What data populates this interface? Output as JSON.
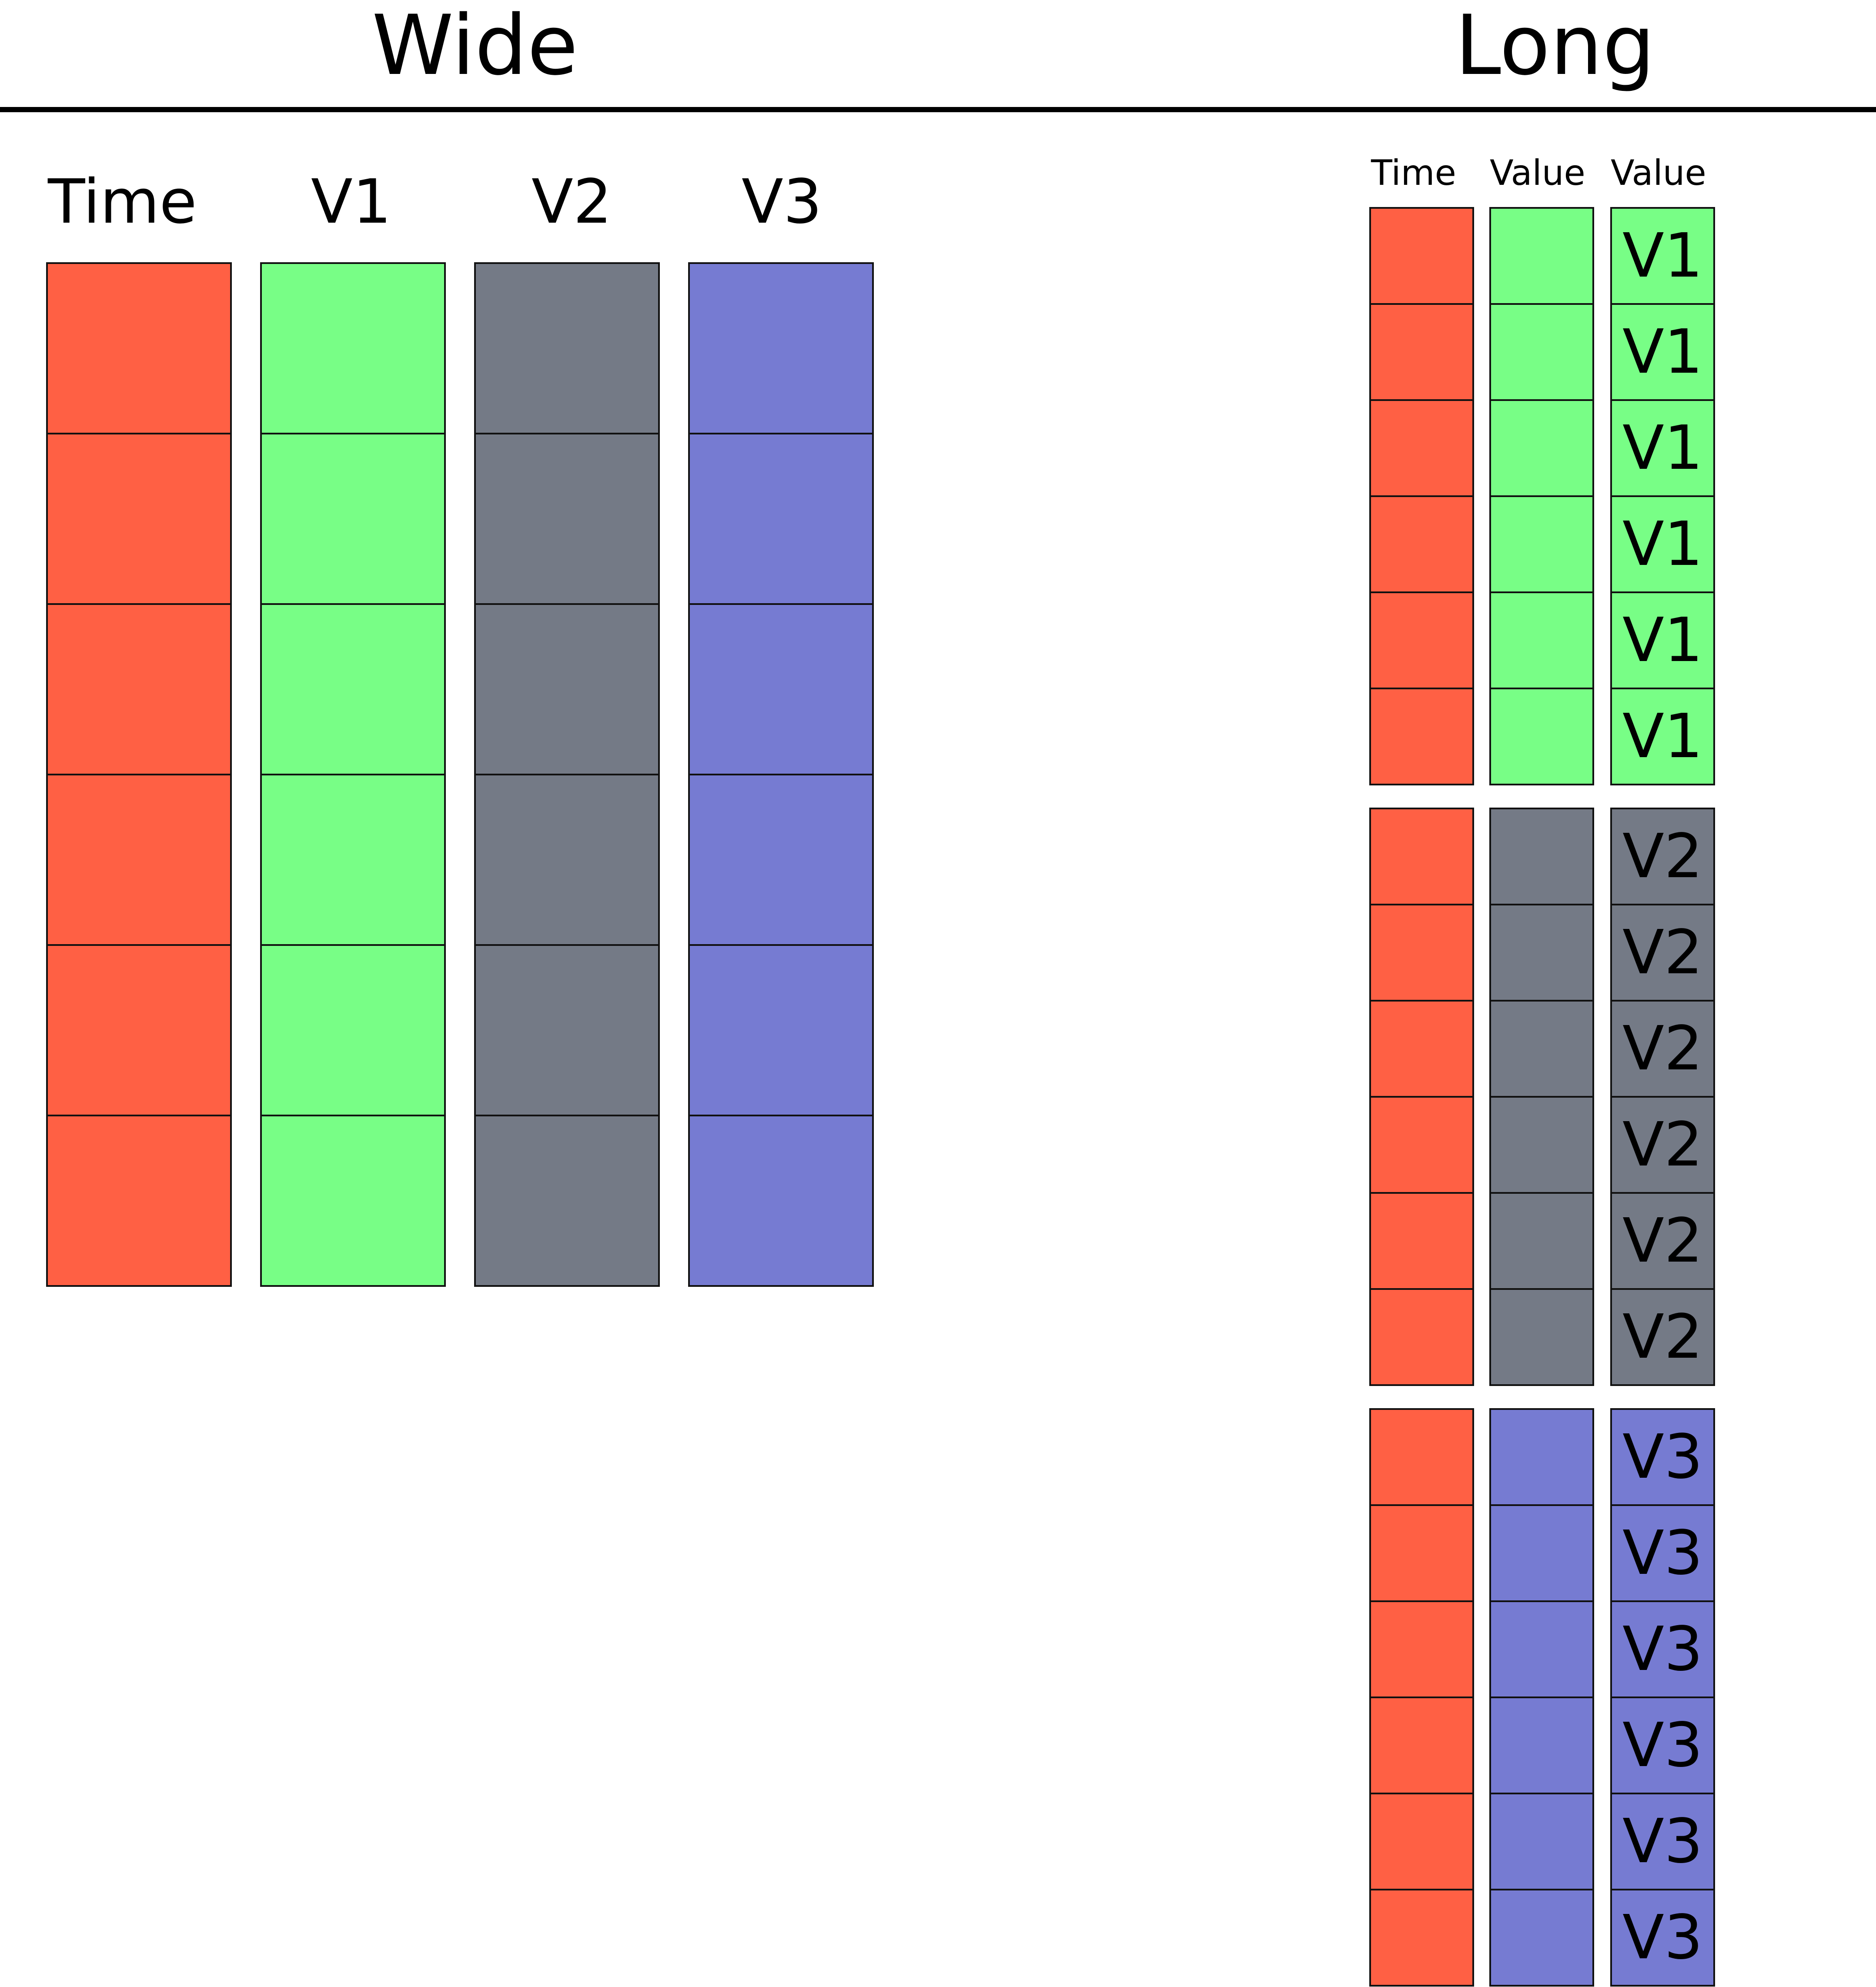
{
  "wide": {
    "title": "Wide",
    "rows": 6,
    "columns": [
      {
        "label": "Time",
        "color": "#ff6044"
      },
      {
        "label": "V1",
        "color": "#78fe86"
      },
      {
        "label": "V2",
        "color": "#747a86"
      },
      {
        "label": "V3",
        "color": "#767bd2"
      }
    ]
  },
  "long": {
    "title": "Long",
    "headers": [
      "Time",
      "Value",
      "Value"
    ],
    "time_color": "#ff6044",
    "groups": [
      {
        "variable": "V1",
        "color": "#78fe86",
        "labels": [
          "V1",
          "V1",
          "V1",
          "V1",
          "V1",
          "V1"
        ]
      },
      {
        "variable": "V2",
        "color": "#747a86",
        "labels": [
          "V2",
          "V2",
          "V2",
          "V2",
          "V2",
          "V2"
        ]
      },
      {
        "variable": "V3",
        "color": "#767bd2",
        "labels": [
          "V3",
          "V3",
          "V3",
          "V3",
          "V3",
          "V3"
        ]
      }
    ]
  }
}
